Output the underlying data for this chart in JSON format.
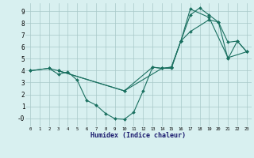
{
  "xlabel": "Humidex (Indice chaleur)",
  "bg_color": "#d8f0f0",
  "grid_color": "#a8c8c8",
  "line_color": "#1a7060",
  "xlim": [
    -0.5,
    23.5
  ],
  "ylim": [
    -0.7,
    9.7
  ],
  "xticks": [
    0,
    1,
    2,
    3,
    4,
    5,
    6,
    7,
    8,
    9,
    10,
    11,
    12,
    13,
    14,
    15,
    16,
    17,
    18,
    19,
    20,
    21,
    22,
    23
  ],
  "yticks": [
    0,
    1,
    2,
    3,
    4,
    5,
    6,
    7,
    8,
    9
  ],
  "ytick_labels": [
    "-0",
    "1",
    "2",
    "3",
    "4",
    "5",
    "6",
    "7",
    "8",
    "9"
  ],
  "line1_x": [
    0,
    2,
    3,
    4,
    5,
    6,
    7,
    8,
    9,
    10,
    11,
    12,
    13,
    14,
    15,
    16,
    17,
    19,
    20,
    21,
    22,
    23
  ],
  "line1_y": [
    4.0,
    4.2,
    3.7,
    3.9,
    3.2,
    1.5,
    1.1,
    0.4,
    -0.05,
    -0.1,
    0.5,
    2.3,
    4.3,
    4.2,
    4.2,
    6.5,
    7.3,
    8.3,
    8.1,
    6.4,
    6.5,
    5.6
  ],
  "line2_x": [
    0,
    2,
    3,
    10,
    14,
    15,
    16,
    17,
    19,
    21,
    23
  ],
  "line2_y": [
    4.0,
    4.2,
    4.0,
    2.3,
    4.2,
    4.3,
    6.5,
    9.2,
    8.5,
    5.1,
    5.6
  ],
  "line3_x": [
    3,
    10,
    13,
    14,
    15,
    16,
    17,
    18,
    19,
    20,
    21,
    22,
    23
  ],
  "line3_y": [
    4.0,
    2.3,
    4.3,
    4.2,
    4.3,
    6.5,
    8.7,
    9.3,
    8.7,
    8.1,
    5.0,
    6.5,
    5.6
  ]
}
